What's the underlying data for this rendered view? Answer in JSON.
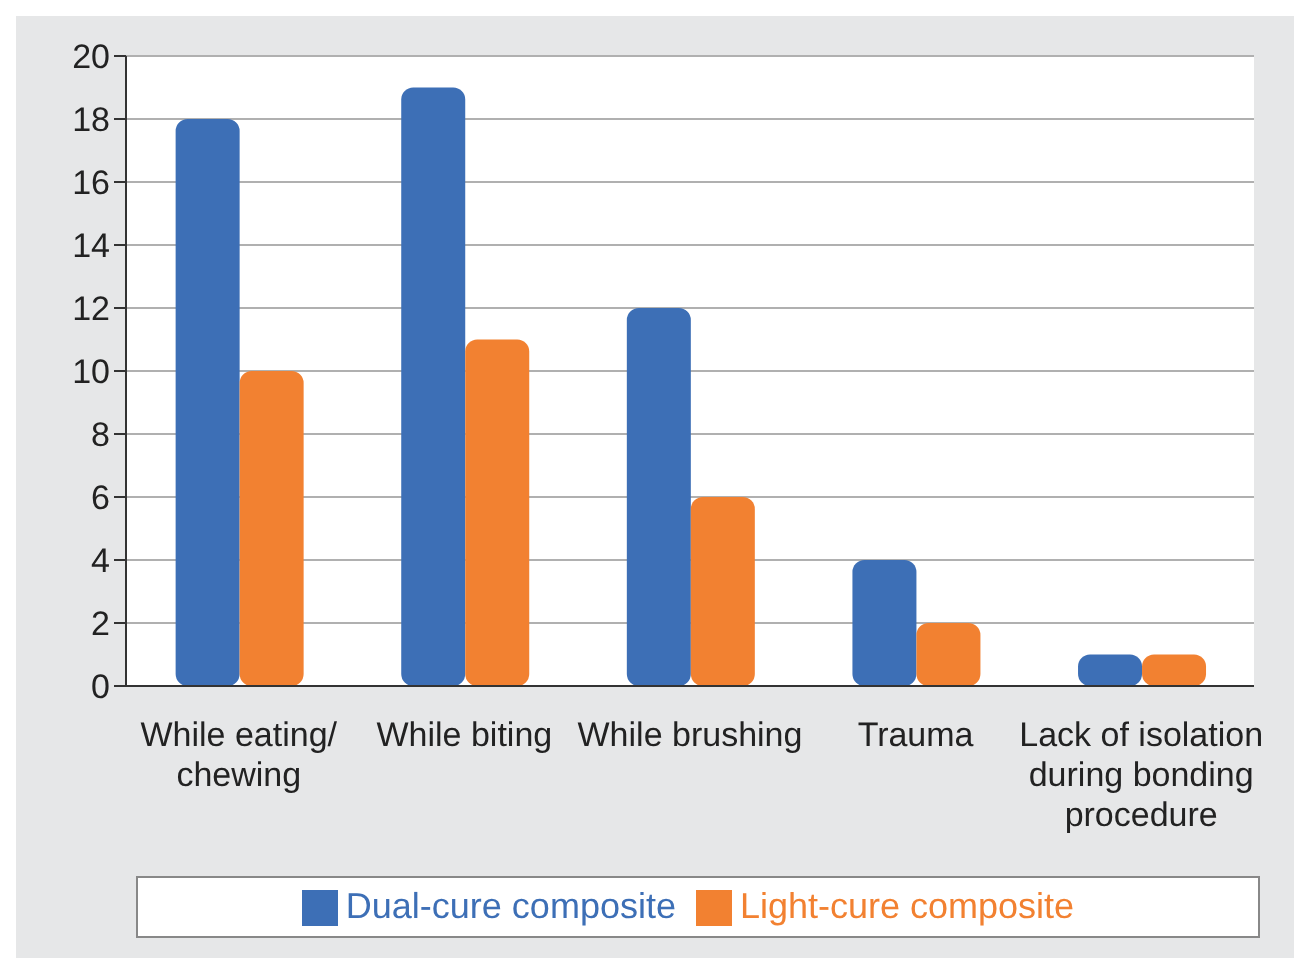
{
  "chart_data": {
    "type": "bar",
    "categories": [
      "While eating/ chewing",
      "While biting",
      "While brushing",
      "Trauma",
      "Lack of isolation during bonding procedure"
    ],
    "series": [
      {
        "name": "Dual-cure composite",
        "color": "#3d6fb6",
        "values": [
          18,
          19,
          12,
          4,
          1
        ]
      },
      {
        "name": "Light-cure composite",
        "color": "#f28131",
        "values": [
          10,
          11,
          6,
          2,
          1
        ]
      }
    ],
    "ylim": [
      0,
      20
    ],
    "yticks": [
      0,
      2,
      4,
      6,
      8,
      10,
      12,
      14,
      16,
      18,
      20
    ],
    "grid": "y",
    "legend": "bottom"
  }
}
